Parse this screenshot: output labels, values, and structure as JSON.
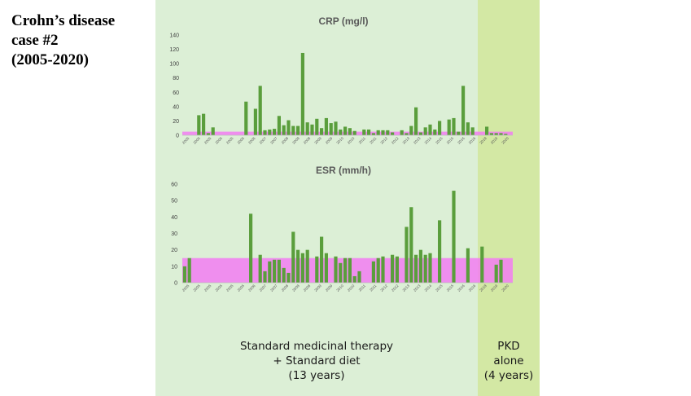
{
  "case_title": {
    "line1": "Crohn’s disease",
    "line2": "case #2",
    "line3": "(2005-2020)"
  },
  "phases": {
    "standard": {
      "line1": "Standard medicinal therapy",
      "line2": "+ Standard diet",
      "line3": "(13 years)",
      "color": "#dcefd6"
    },
    "pkd": {
      "line1": "PKD",
      "line2": "alone",
      "line3": "(4 years)",
      "color": "#d3e8a4"
    }
  },
  "chart_data": [
    {
      "type": "bar",
      "title": "CRP (mg/l)",
      "ylim": [
        0,
        140
      ],
      "yticks": [
        0,
        20,
        40,
        60,
        80,
        100,
        120,
        140
      ],
      "reference_band": [
        0,
        5
      ],
      "bar_color": "#5a9e3c",
      "band_color": "#f27cf2",
      "categories": [
        "2005",
        "2005",
        "2005",
        "2005",
        "2005",
        "2005",
        "2005",
        "2005",
        "2005",
        "2005",
        "2005",
        "2005",
        "2005",
        "2005",
        "2006",
        "2006",
        "2006",
        "2007",
        "2007",
        "2007",
        "2007",
        "2007",
        "2008",
        "2008",
        "2008",
        "2008",
        "2008",
        "2008",
        "2008",
        "2008",
        "2008",
        "2009",
        "2009",
        "2009",
        "2009",
        "2009",
        "2010",
        "2010",
        "2010",
        "2010",
        "2010",
        "2011",
        "2011",
        "2011",
        "2011",
        "2011",
        "2012",
        "2012",
        "2012",
        "2012",
        "2013",
        "2013",
        "2013",
        "2013",
        "2014",
        "2014",
        "2014",
        "2015",
        "2015",
        "2015",
        "2015",
        "2016",
        "2016",
        "2016",
        "2016",
        "2018",
        "2018",
        "2019",
        "2019",
        "2020"
      ],
      "x_tick_labels": [
        "2005",
        "2005",
        "2005",
        "2005",
        "2005",
        "2005",
        "2006",
        "2007",
        "2007",
        "2008",
        "2008",
        "2008",
        "2009",
        "2009",
        "2010",
        "2010",
        "2011",
        "2011",
        "2012",
        "2012",
        "2013",
        "2013",
        "2014",
        "2015",
        "2015",
        "2016",
        "2016",
        "2018",
        "2019",
        "2020"
      ],
      "values": [
        0,
        0,
        0,
        28,
        30,
        3,
        11,
        0,
        0,
        0,
        0,
        0,
        0,
        47,
        0,
        37,
        69,
        7,
        8,
        9,
        27,
        14,
        21,
        13,
        13,
        115,
        18,
        15,
        23,
        10,
        24,
        17,
        19,
        8,
        12,
        10,
        6,
        0,
        8,
        8,
        3,
        7,
        7,
        7,
        4,
        0,
        7,
        3,
        13,
        39,
        4,
        11,
        15,
        8,
        20,
        0,
        22,
        24,
        5,
        69,
        18,
        11,
        0,
        0,
        12,
        3,
        3,
        3,
        2,
        0
      ]
    },
    {
      "type": "bar",
      "title": "ESR (mm/h)",
      "ylim": [
        0,
        60
      ],
      "yticks": [
        0,
        10,
        20,
        30,
        40,
        50,
        60
      ],
      "reference_band": [
        0,
        15
      ],
      "bar_color": "#5a9e3c",
      "band_color": "#f27cf2",
      "categories": [
        "2005",
        "2005",
        "2005",
        "2005",
        "2005",
        "2005",
        "2005",
        "2005",
        "2005",
        "2005",
        "2005",
        "2005",
        "2005",
        "2005",
        "2006",
        "2006",
        "2006",
        "2007",
        "2007",
        "2007",
        "2007",
        "2007",
        "2008",
        "2008",
        "2008",
        "2008",
        "2008",
        "2008",
        "2008",
        "2008",
        "2008",
        "2009",
        "2009",
        "2009",
        "2009",
        "2009",
        "2010",
        "2010",
        "2010",
        "2010",
        "2010",
        "2011",
        "2011",
        "2011",
        "2011",
        "2011",
        "2012",
        "2012",
        "2012",
        "2012",
        "2013",
        "2013",
        "2013",
        "2013",
        "2014",
        "2014",
        "2014",
        "2015",
        "2015",
        "2015",
        "2015",
        "2016",
        "2016",
        "2016",
        "2016",
        "2018",
        "2018",
        "2019",
        "2019",
        "2020"
      ],
      "x_tick_labels": [
        "2005",
        "2005",
        "2005",
        "2005",
        "2005",
        "2005",
        "2006",
        "2007",
        "2007",
        "2008",
        "2008",
        "2008",
        "2009",
        "2009",
        "2010",
        "2010",
        "2011",
        "2011",
        "2012",
        "2012",
        "2013",
        "2013",
        "2014",
        "2015",
        "2015",
        "2016",
        "2016",
        "2018",
        "2019",
        "2020"
      ],
      "values": [
        10,
        15,
        0,
        0,
        0,
        0,
        0,
        0,
        0,
        0,
        0,
        0,
        0,
        0,
        42,
        0,
        17,
        7,
        13,
        14,
        14,
        9,
        6,
        31,
        20,
        18,
        20,
        0,
        16,
        28,
        18,
        0,
        16,
        12,
        15,
        15,
        4,
        7,
        0,
        0,
        13,
        15,
        16,
        0,
        17,
        16,
        0,
        34,
        46,
        17,
        20,
        17,
        18,
        0,
        38,
        0,
        0,
        56,
        0,
        0,
        21,
        0,
        0,
        22,
        0,
        0,
        11,
        14,
        0,
        0
      ]
    }
  ]
}
